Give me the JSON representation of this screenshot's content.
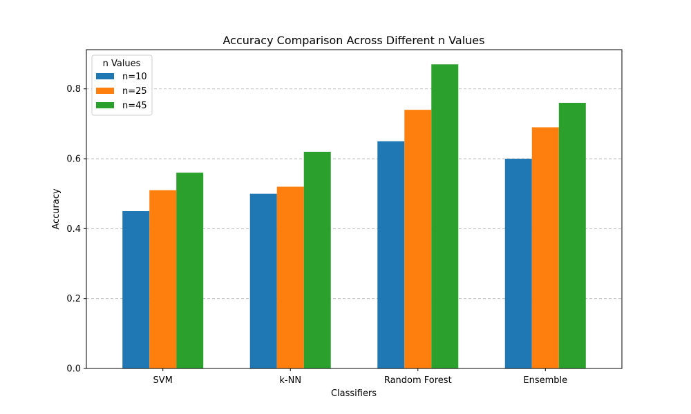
{
  "chart_data": {
    "type": "bar",
    "title": "Accuracy Comparison Across Different n Values",
    "xlabel": "Classifiers",
    "ylabel": "Accuracy",
    "categories": [
      "SVM",
      "k-NN",
      "Random Forest",
      "Ensemble"
    ],
    "series": [
      {
        "name": "n=10",
        "values": [
          0.45,
          0.5,
          0.65,
          0.6
        ],
        "color": "#1f77b4"
      },
      {
        "name": "n=25",
        "values": [
          0.51,
          0.52,
          0.74,
          0.69
        ],
        "color": "#ff7f0e"
      },
      {
        "name": "n=45",
        "values": [
          0.56,
          0.62,
          0.87,
          0.76
        ],
        "color": "#2ca02c"
      }
    ],
    "ylim": [
      0,
      0.912
    ],
    "yticks": [
      0.0,
      0.2,
      0.4,
      0.6,
      0.8
    ],
    "ytick_labels": [
      "0.0",
      "0.2",
      "0.4",
      "0.6",
      "0.8"
    ],
    "grid": "y-dashed",
    "legend": {
      "title": "n Values",
      "placement": "top-left"
    }
  }
}
